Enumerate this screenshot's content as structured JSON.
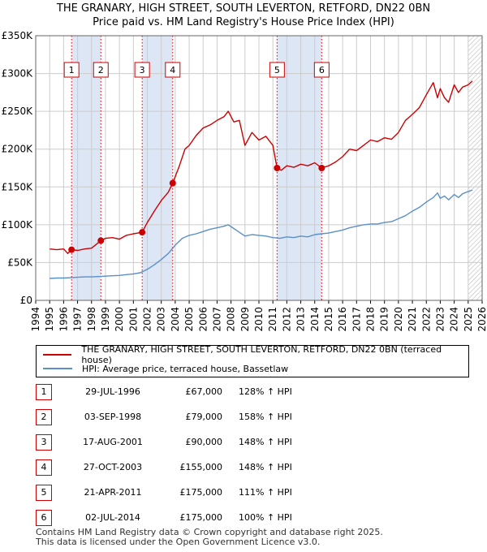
{
  "header": {
    "title_line1": "THE GRANARY, HIGH STREET, SOUTH LEVERTON, RETFORD, DN22 0BN",
    "title_line2": "Price paid vs. HM Land Registry's House Price Index (HPI)"
  },
  "colors": {
    "property": "#cc0000",
    "hpi": "#5b8fc9",
    "shade": "#dde6f5",
    "grid": "#cccccc"
  },
  "chart_data": {
    "type": "line",
    "title": "Price paid vs. HM Land Registry's House Price Index (HPI)",
    "xlim": [
      1994,
      2026
    ],
    "ylim": [
      0,
      350000
    ],
    "x_ticks": [
      "1994",
      "1995",
      "1996",
      "1997",
      "1998",
      "1999",
      "2000",
      "2001",
      "2002",
      "2003",
      "2004",
      "2005",
      "2006",
      "2007",
      "2008",
      "2009",
      "2010",
      "2011",
      "2012",
      "2013",
      "2014",
      "2015",
      "2016",
      "2017",
      "2018",
      "2019",
      "2020",
      "2021",
      "2022",
      "2023",
      "2024",
      "2025",
      "2026"
    ],
    "y_ticks": [
      {
        "value": 0,
        "label": "£0"
      },
      {
        "value": 50000,
        "label": "£50K"
      },
      {
        "value": 100000,
        "label": "£100K"
      },
      {
        "value": 150000,
        "label": "£150K"
      },
      {
        "value": 200000,
        "label": "£200K"
      },
      {
        "value": 250000,
        "label": "£250K"
      },
      {
        "value": 300000,
        "label": "£300K"
      },
      {
        "value": 350000,
        "label": "£350K"
      }
    ],
    "shaded_periods": [
      [
        1996.57,
        1998.67
      ],
      [
        2001.63,
        2003.82
      ],
      [
        2011.3,
        2014.5
      ]
    ],
    "hatched_from": 2025.0,
    "series": [
      {
        "name": "THE GRANARY, HIGH STREET, SOUTH LEVERTON, RETFORD, DN22 0BN (terraced house)",
        "x": [
          1995.0,
          1995.5,
          1996.0,
          1996.3,
          1996.57,
          1997.0,
          1997.5,
          1998.0,
          1998.67,
          1999.0,
          1999.5,
          2000.0,
          2000.5,
          2001.0,
          2001.63,
          2002.0,
          2002.5,
          2003.0,
          2003.5,
          2003.82,
          2004.3,
          2004.7,
          2005.0,
          2005.5,
          2006.0,
          2006.5,
          2007.0,
          2007.5,
          2007.8,
          2008.2,
          2008.6,
          2009.0,
          2009.5,
          2010.0,
          2010.5,
          2011.0,
          2011.3,
          2011.6,
          2012.0,
          2012.5,
          2013.0,
          2013.5,
          2014.0,
          2014.5,
          2015.0,
          2015.5,
          2016.0,
          2016.5,
          2017.0,
          2017.5,
          2018.0,
          2018.5,
          2019.0,
          2019.5,
          2020.0,
          2020.5,
          2021.0,
          2021.5,
          2022.0,
          2022.5,
          2022.8,
          2023.0,
          2023.3,
          2023.6,
          2024.0,
          2024.3,
          2024.6,
          2025.0,
          2025.3
        ],
        "values": [
          68000,
          67000,
          68000,
          62000,
          67000,
          66000,
          68000,
          69000,
          79000,
          82000,
          83000,
          81000,
          86000,
          88000,
          90000,
          103000,
          118000,
          132000,
          143000,
          155000,
          178000,
          200000,
          205000,
          218000,
          228000,
          232000,
          238000,
          243000,
          250000,
          236000,
          238000,
          205000,
          222000,
          212000,
          217000,
          205000,
          175000,
          172000,
          178000,
          176000,
          180000,
          178000,
          182000,
          175000,
          178000,
          183000,
          190000,
          200000,
          198000,
          205000,
          212000,
          210000,
          215000,
          213000,
          222000,
          238000,
          246000,
          255000,
          272000,
          288000,
          268000,
          280000,
          268000,
          262000,
          285000,
          275000,
          282000,
          285000,
          290000
        ]
      },
      {
        "name": "HPI: Average price, terraced house, Bassetlaw",
        "x": [
          1995.0,
          1995.5,
          1996.0,
          1996.5,
          1997.0,
          1997.5,
          1998.0,
          1998.5,
          1999.0,
          1999.5,
          2000.0,
          2000.5,
          2001.0,
          2001.5,
          2002.0,
          2002.5,
          2003.0,
          2003.5,
          2004.0,
          2004.5,
          2005.0,
          2005.5,
          2006.0,
          2006.5,
          2007.0,
          2007.5,
          2007.8,
          2008.2,
          2008.6,
          2009.0,
          2009.5,
          2010.0,
          2010.5,
          2011.0,
          2011.5,
          2012.0,
          2012.5,
          2013.0,
          2013.5,
          2014.0,
          2014.5,
          2015.0,
          2015.5,
          2016.0,
          2016.5,
          2017.0,
          2017.5,
          2018.0,
          2018.5,
          2019.0,
          2019.5,
          2020.0,
          2020.5,
          2021.0,
          2021.5,
          2022.0,
          2022.5,
          2022.8,
          2023.0,
          2023.3,
          2023.6,
          2024.0,
          2024.3,
          2024.6,
          2025.0,
          2025.3
        ],
        "values": [
          29000,
          29500,
          29500,
          30000,
          30500,
          31000,
          31000,
          31500,
          32000,
          32500,
          33000,
          34000,
          35000,
          36500,
          41000,
          47000,
          54000,
          62000,
          73000,
          82000,
          86000,
          88000,
          91000,
          94000,
          96000,
          98000,
          100000,
          95000,
          90000,
          85000,
          87000,
          86000,
          85000,
          83000,
          82000,
          84000,
          83000,
          85000,
          84000,
          87000,
          88000,
          89000,
          91000,
          93000,
          96000,
          98000,
          100000,
          101000,
          101000,
          103000,
          104000,
          108000,
          112000,
          118000,
          123000,
          130000,
          136000,
          142000,
          135000,
          138000,
          133000,
          140000,
          136000,
          141000,
          144000,
          146000
        ]
      }
    ],
    "sales_markers": [
      {
        "id": "1",
        "x": 1996.57,
        "value": 67000
      },
      {
        "id": "2",
        "x": 1998.67,
        "value": 79000
      },
      {
        "id": "3",
        "x": 2001.63,
        "value": 90000
      },
      {
        "id": "4",
        "x": 2003.82,
        "value": 155000
      },
      {
        "id": "5",
        "x": 2011.3,
        "value": 175000
      },
      {
        "id": "6",
        "x": 2014.5,
        "value": 175000
      }
    ]
  },
  "legend": {
    "property_label": "THE GRANARY, HIGH STREET, SOUTH LEVERTON, RETFORD, DN22 0BN (terraced house)",
    "hpi_label": "HPI: Average price, terraced house, Bassetlaw"
  },
  "sales": [
    {
      "num": "1",
      "date": "29-JUL-1996",
      "price": "£67,000",
      "hpi": "128% ↑ HPI"
    },
    {
      "num": "2",
      "date": "03-SEP-1998",
      "price": "£79,000",
      "hpi": "158% ↑ HPI"
    },
    {
      "num": "3",
      "date": "17-AUG-2001",
      "price": "£90,000",
      "hpi": "148% ↑ HPI"
    },
    {
      "num": "4",
      "date": "27-OCT-2003",
      "price": "£155,000",
      "hpi": "148% ↑ HPI"
    },
    {
      "num": "5",
      "date": "21-APR-2011",
      "price": "£175,000",
      "hpi": "111% ↑ HPI"
    },
    {
      "num": "6",
      "date": "02-JUL-2014",
      "price": "£175,000",
      "hpi": "100% ↑ HPI"
    }
  ],
  "footer": {
    "line1": "Contains HM Land Registry data © Crown copyright and database right 2025.",
    "line2": "This data is licensed under the Open Government Licence v3.0."
  }
}
